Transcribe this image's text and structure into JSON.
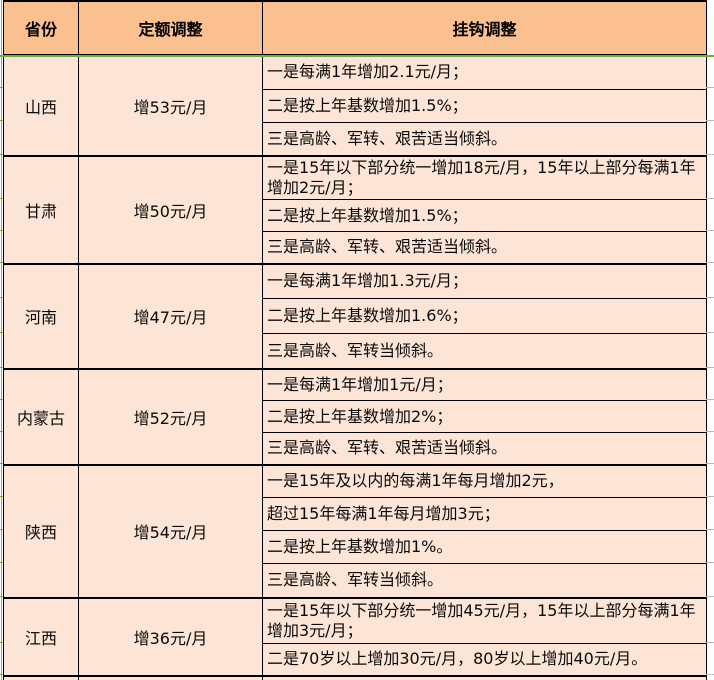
{
  "table": {
    "headers": [
      "省份",
      "定额调整",
      "挂钩调整"
    ],
    "rows": [
      {
        "province": "山西",
        "amount": "增53元/月",
        "details": [
          "一是每满1年增加2.1元/月；",
          "二是按上年基数增加1.5%；",
          "三是高龄、军转、艰苦适当倾斜。"
        ]
      },
      {
        "province": "甘肃",
        "amount": "增50元/月",
        "details": [
          "一是15年以下部分统一增加18元/月，15年以上部分每满1年增加2元/月；",
          "二是按上年基数增加1.5%；",
          "三是高龄、军转、艰苦适当倾斜。"
        ]
      },
      {
        "province": "河南",
        "amount": "增47元/月",
        "details": [
          "一是每满1年增加1.3元/月；",
          "二是按上年基数增加1.6%；",
          "三是高龄、军转当倾斜。"
        ]
      },
      {
        "province": "内蒙古",
        "amount": "增52元/月",
        "details": [
          "一是每满1年增加1元/月；",
          "二是按上年基数增加2%；",
          "三是高龄、军转、艰苦适当倾斜。"
        ]
      },
      {
        "province": "陕西",
        "amount": "增54元/月",
        "details": [
          "一是15年及以内的每满1年每月增加2元，",
          "超过15年每满1年每月增加3元；",
          "二是按上年基数增加1%。",
          "三是高龄、军转当倾斜。"
        ]
      },
      {
        "province": "江西",
        "amount": "增36元/月",
        "details": [
          "一是15年以下部分统一增加45元/月，15年以上部分每满1年增加3元/月；",
          "二是70岁以上增加30元/月，80岁以上增加40元/月。"
        ]
      }
    ]
  },
  "colors": {
    "header_bg": "#FAC090",
    "body_bg": "#FCE4D6",
    "border": "#000000",
    "grid_green": "#70AD47"
  }
}
